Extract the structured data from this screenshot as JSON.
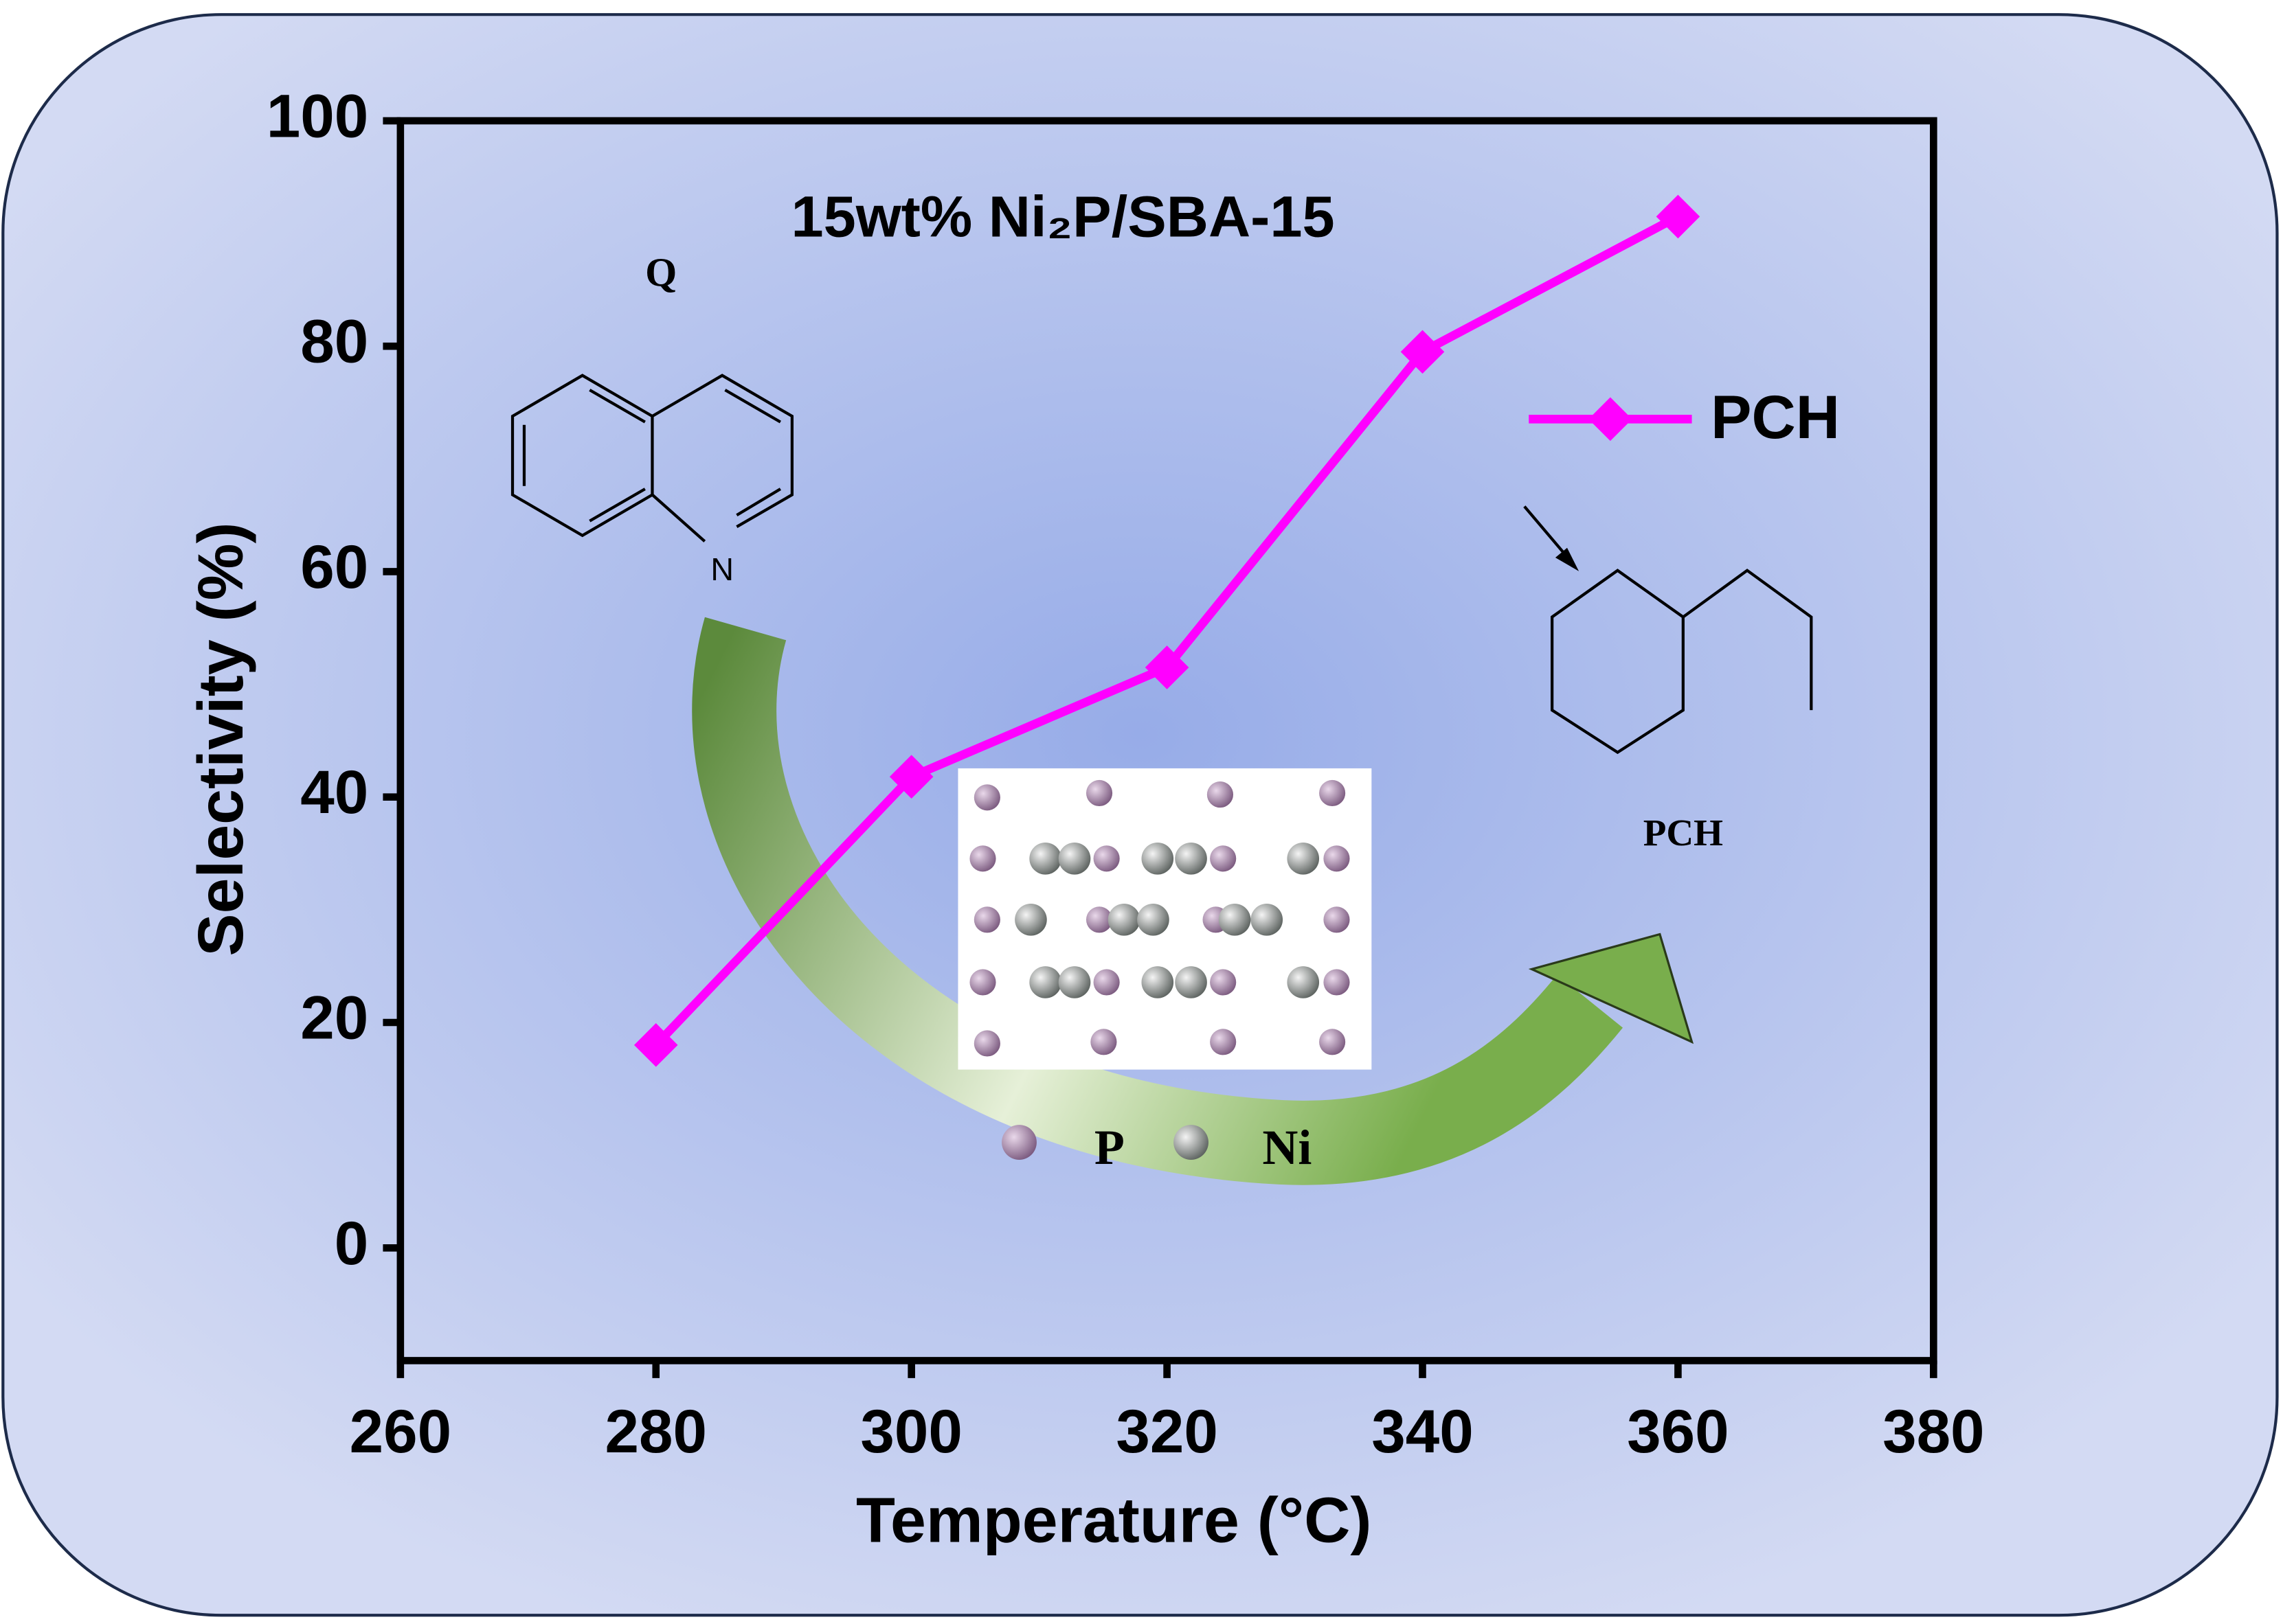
{
  "chart_data": {
    "type": "line",
    "title": "15wt% Ni₂P/SBA-15",
    "x_label": "Temperature (°C)",
    "y_label": "Selectivity (%)",
    "x": [
      280,
      300,
      320,
      340,
      360
    ],
    "series": [
      {
        "name": "PCH",
        "color": "#ff00ff",
        "values": [
          18,
          41.8,
          51.5,
          79.5,
          91.5
        ]
      }
    ],
    "xlim": [
      260,
      380
    ],
    "xticks": [
      260,
      280,
      300,
      320,
      340,
      360,
      380
    ],
    "ylim": [
      -10,
      100
    ],
    "yticks": [
      0,
      20,
      40,
      60,
      80,
      100
    ],
    "legend": "upper right",
    "annotations": {
      "quinoline": "Q",
      "nitrogen": "N",
      "product": "PCH",
      "phosphorus": "P",
      "nickel": "Ni"
    }
  }
}
